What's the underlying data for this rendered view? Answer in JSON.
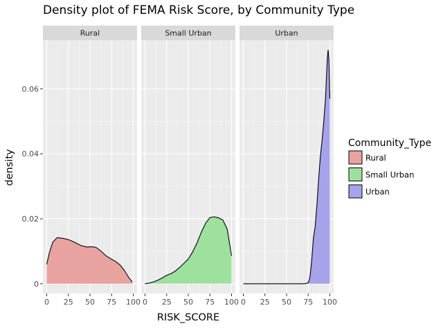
{
  "chart_data": {
    "type": "area",
    "title": "Density plot of FEMA Risk Score, by Community Type",
    "xlabel": "RISK_SCORE",
    "ylabel": "density",
    "xlim": [
      0,
      100
    ],
    "ylim": [
      -0.003,
      0.075
    ],
    "x_ticks": [
      0,
      25,
      50,
      75,
      100
    ],
    "x_tick_labels": [
      "0",
      "25",
      "50",
      "75",
      "100"
    ],
    "y_ticks": [
      0,
      0.02,
      0.04,
      0.06
    ],
    "y_tick_labels": [
      "0",
      "0.02",
      "0.04",
      "0.06"
    ],
    "grid": true,
    "legend": {
      "title": "Community_Type",
      "placement": "right",
      "entries": [
        {
          "label": "Rural",
          "color": "#e8a3a0"
        },
        {
          "label": "Small Urban",
          "color": "#9ee09e"
        },
        {
          "label": "Urban",
          "color": "#a6a3ea"
        }
      ]
    },
    "facets": [
      {
        "label": "Rural",
        "color": "#e8a3a0",
        "points": [
          [
            0,
            0.006
          ],
          [
            3,
            0.0095
          ],
          [
            7,
            0.0128
          ],
          [
            12,
            0.0142
          ],
          [
            18,
            0.014
          ],
          [
            25,
            0.0136
          ],
          [
            32,
            0.0128
          ],
          [
            40,
            0.0117
          ],
          [
            47,
            0.0113
          ],
          [
            52,
            0.0114
          ],
          [
            57,
            0.0112
          ],
          [
            63,
            0.01
          ],
          [
            68,
            0.0087
          ],
          [
            74,
            0.0077
          ],
          [
            80,
            0.0068
          ],
          [
            85,
            0.0057
          ],
          [
            90,
            0.004
          ],
          [
            95,
            0.0018
          ],
          [
            99,
            0.0005
          ]
        ]
      },
      {
        "label": "Small Urban",
        "color": "#9ee09e",
        "points": [
          [
            0,
            0.0
          ],
          [
            5,
            0.0002
          ],
          [
            10,
            0.0006
          ],
          [
            15,
            0.0011
          ],
          [
            20,
            0.0018
          ],
          [
            25,
            0.0026
          ],
          [
            30,
            0.0031
          ],
          [
            35,
            0.0039
          ],
          [
            40,
            0.005
          ],
          [
            45,
            0.0063
          ],
          [
            50,
            0.0076
          ],
          [
            55,
            0.0098
          ],
          [
            60,
            0.0125
          ],
          [
            65,
            0.0158
          ],
          [
            70,
            0.0186
          ],
          [
            75,
            0.0204
          ],
          [
            80,
            0.0206
          ],
          [
            85,
            0.0203
          ],
          [
            90,
            0.0196
          ],
          [
            95,
            0.0168
          ],
          [
            100,
            0.0086
          ]
        ]
      },
      {
        "label": "Urban",
        "color": "#a6a3ea",
        "points": [
          [
            0,
            0.0
          ],
          [
            20,
            0.0
          ],
          [
            40,
            0.0
          ],
          [
            60,
            0.0
          ],
          [
            70,
            0.0
          ],
          [
            72,
            5e-05
          ],
          [
            75,
            0.0003
          ],
          [
            77,
            0.002
          ],
          [
            79,
            0.007
          ],
          [
            81,
            0.014
          ],
          [
            83,
            0.0175
          ],
          [
            85,
            0.024
          ],
          [
            87,
            0.032
          ],
          [
            89,
            0.039
          ],
          [
            91,
            0.044
          ],
          [
            93,
            0.05
          ],
          [
            95,
            0.057
          ],
          [
            96,
            0.063
          ],
          [
            97,
            0.069
          ],
          [
            98,
            0.072
          ],
          [
            99,
            0.069
          ],
          [
            100,
            0.057
          ]
        ]
      }
    ]
  }
}
